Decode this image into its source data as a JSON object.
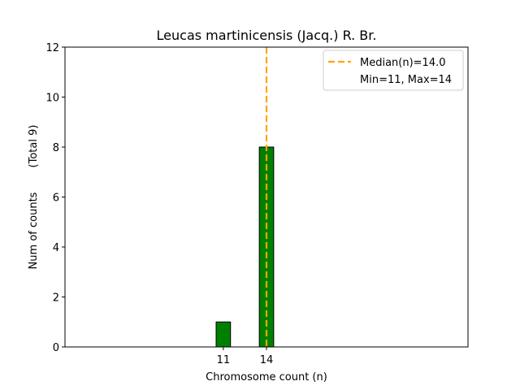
{
  "chart_data": {
    "type": "bar",
    "title": "Leucas martinicensis (Jacq.) R. Br.",
    "xlabel": "Chromosome count (n)",
    "ylabel": "Num of counts",
    "ylabel_total": "(Total 9)",
    "x": [
      11,
      14
    ],
    "values": [
      1,
      8
    ],
    "xticks": [
      "11",
      "14"
    ],
    "yticks": [
      "0",
      "2",
      "4",
      "6",
      "8",
      "10",
      "12"
    ],
    "ylim": [
      0,
      12
    ],
    "xlim": [
      0,
      28
    ],
    "bar_color": "#008000",
    "median": 14.0,
    "median_color": "#ffa500",
    "legend": {
      "position": "top-right",
      "median_label": "Median(n)=14.0",
      "range_label": "Min=11, Max=14"
    },
    "grid": false
  }
}
